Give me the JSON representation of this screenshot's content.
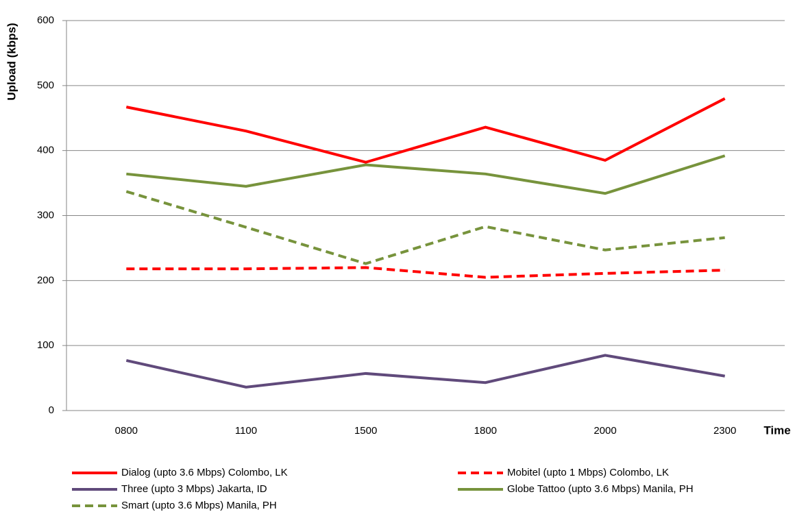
{
  "chart_data": {
    "type": "line",
    "y_label": "Upload (kbps)",
    "x_label": "Time",
    "categories": [
      "0800",
      "1100",
      "1500",
      "1800",
      "2000",
      "2300"
    ],
    "ylim": [
      0,
      600
    ],
    "yticks": [
      0,
      100,
      200,
      300,
      400,
      500,
      600
    ],
    "grid": true,
    "series": [
      {
        "name": "Dialog (upto 3.6 Mbps) Colombo, LK",
        "color": "#ff0000",
        "dashed": false,
        "values": [
          467,
          430,
          382,
          436,
          385,
          480
        ]
      },
      {
        "name": "Mobitel (upto 1 Mbps) Colombo, LK",
        "color": "#ff0000",
        "dashed": true,
        "values": [
          218,
          218,
          220,
          205,
          211,
          216
        ]
      },
      {
        "name": "Three (upto 3 Mbps) Jakarta, ID",
        "color": "#604a7b",
        "dashed": false,
        "values": [
          77,
          36,
          57,
          43,
          85,
          53
        ]
      },
      {
        "name": "Globe Tattoo (upto 3.6 Mbps) Manila, PH",
        "color": "#77933c",
        "dashed": false,
        "values": [
          364,
          345,
          378,
          364,
          334,
          392
        ]
      },
      {
        "name": "Smart (upto 3.6 Mbps) Manila, PH",
        "color": "#77933c",
        "dashed": true,
        "values": [
          337,
          282,
          226,
          283,
          247,
          266
        ]
      }
    ]
  }
}
